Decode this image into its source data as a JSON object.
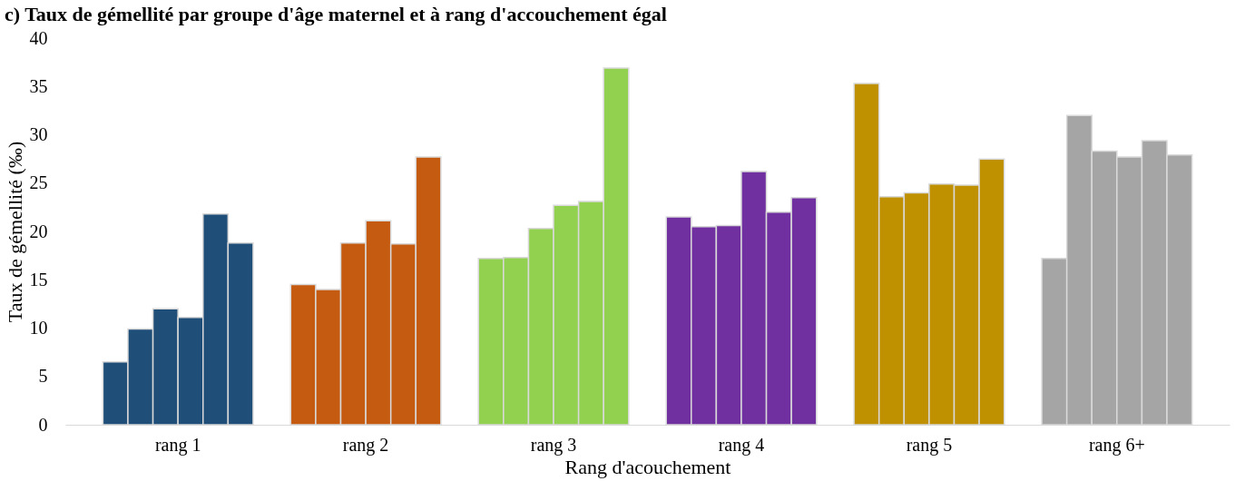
{
  "chart_data": {
    "type": "bar",
    "title": "c)   Taux de gémellité par groupe d'âge maternel et à rang d'accouchement égal",
    "xlabel": "Rang d'acouchement",
    "ylabel": "Taux de gémellité (‰)",
    "categories": [
      "rang 1",
      "rang 2",
      "rang 3",
      "rang 4",
      "rang 5",
      "rang 6+"
    ],
    "series": [
      {
        "colors": [
          "#1f4e79",
          "#c55a11",
          "#92d050",
          "#7030a0",
          "#bf9000",
          "#a5a5a5"
        ],
        "values": [
          6.5,
          14.5,
          17.2,
          21.5,
          35.3,
          17.2
        ]
      },
      {
        "colors": [
          "#1f4e79",
          "#c55a11",
          "#92d050",
          "#7030a0",
          "#bf9000",
          "#a5a5a5"
        ],
        "values": [
          9.9,
          14.0,
          17.3,
          20.5,
          23.6,
          32.0
        ]
      },
      {
        "colors": [
          "#1f4e79",
          "#c55a11",
          "#92d050",
          "#7030a0",
          "#bf9000",
          "#a5a5a5"
        ],
        "values": [
          12.0,
          18.8,
          20.3,
          20.6,
          24.0,
          28.3
        ]
      },
      {
        "colors": [
          "#1f4e79",
          "#c55a11",
          "#92d050",
          "#7030a0",
          "#bf9000",
          "#a5a5a5"
        ],
        "values": [
          11.1,
          21.1,
          22.7,
          26.2,
          24.9,
          27.7
        ]
      },
      {
        "colors": [
          "#1f4e79",
          "#c55a11",
          "#92d050",
          "#7030a0",
          "#bf9000",
          "#a5a5a5"
        ],
        "values": [
          21.8,
          18.7,
          23.1,
          22.0,
          24.8,
          29.4
        ]
      },
      {
        "colors": [
          "#1f4e79",
          "#c55a11",
          "#92d050",
          "#7030a0",
          "#bf9000",
          "#a5a5a5"
        ],
        "values": [
          18.8,
          27.7,
          36.9,
          23.5,
          27.5,
          27.9
        ]
      }
    ],
    "ylim": [
      0,
      40
    ],
    "yticks": [
      0,
      5,
      10,
      15,
      20,
      25,
      30,
      35,
      40
    ],
    "grid": false
  }
}
